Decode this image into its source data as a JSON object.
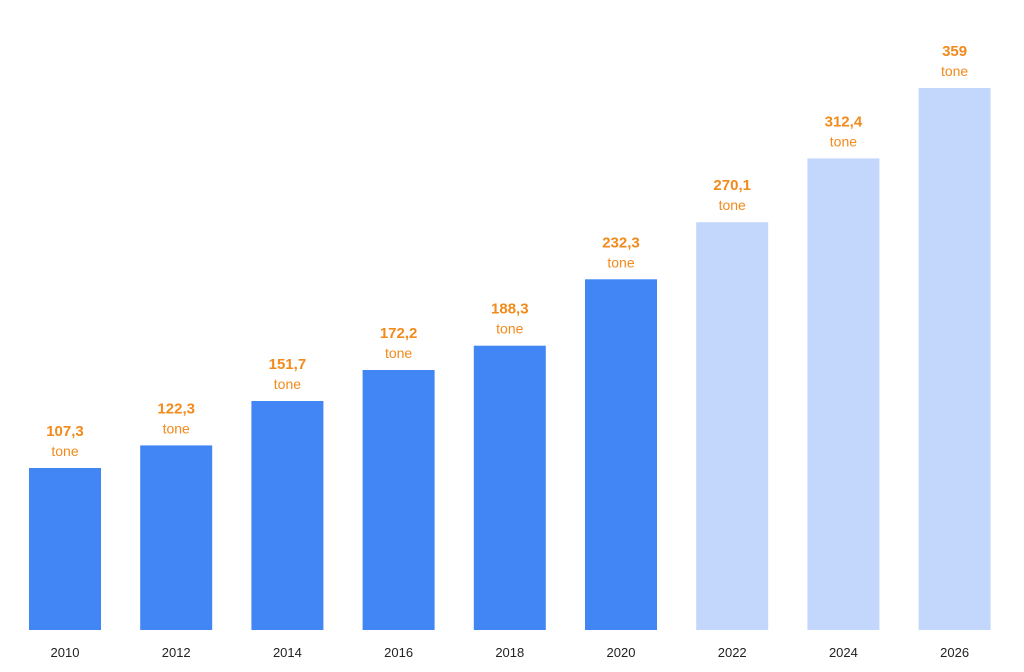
{
  "chart_data": {
    "type": "bar",
    "title": "",
    "xlabel": "",
    "ylabel": "",
    "categories": [
      "2010",
      "2012",
      "2014",
      "2016",
      "2018",
      "2020",
      "2022",
      "2024",
      "2026"
    ],
    "values": [
      107.3,
      122.3,
      151.7,
      172.2,
      188.3,
      232.3,
      270.1,
      312.4,
      359
    ],
    "value_labels": [
      "107,3",
      "122,3",
      "151,7",
      "172,2",
      "188,3",
      "232,3",
      "270,1",
      "312,4",
      "359"
    ],
    "unit": "tone",
    "projected": [
      false,
      false,
      false,
      false,
      false,
      false,
      true,
      true,
      true
    ],
    "ylim": [
      0,
      359
    ],
    "grid": false,
    "legend": "none",
    "colors": {
      "actual_bar": "#4285f4",
      "projected_bar": "#c2d7fb",
      "value_label": "#f28a1c",
      "tick_label": "#222222"
    }
  }
}
